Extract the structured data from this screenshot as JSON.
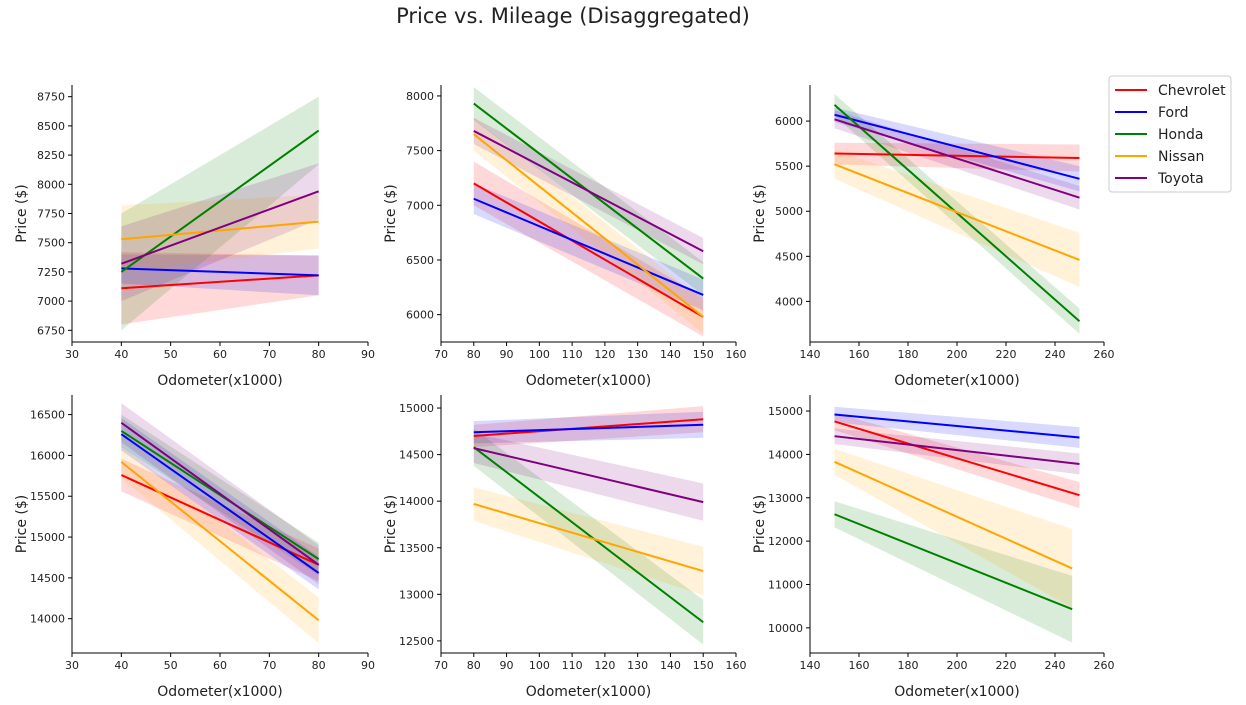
{
  "title": "Price vs. Mileage (Disaggregated)",
  "colors": {
    "Chevrolet": "#ff0000",
    "Ford": "#0000ff",
    "Honda": "#008000",
    "Nissan": "#ffa500",
    "Toyota": "#800080"
  },
  "legend": {
    "placement": "upper-right",
    "entries": [
      "Chevrolet",
      "Ford",
      "Honda",
      "Nissan",
      "Toyota"
    ]
  },
  "chart_data": [
    {
      "type": "line",
      "xlabel": "Odometer(x1000)",
      "ylabel": "Price ($)",
      "xlim": [
        30,
        90
      ],
      "ylim": [
        6650,
        8850
      ],
      "xticks": [
        30,
        40,
        50,
        60,
        70,
        80,
        90
      ],
      "yticks": [
        6750,
        7000,
        7250,
        7500,
        7750,
        8000,
        8250,
        8500,
        8750
      ],
      "series": [
        {
          "name": "Chevrolet",
          "x": [
            40,
            80
          ],
          "y": [
            7110,
            7220
          ],
          "band": [
            [
              6800,
              7420
            ],
            [
              7050,
              7390
            ]
          ]
        },
        {
          "name": "Ford",
          "x": [
            40,
            80
          ],
          "y": [
            7280,
            7220
          ],
          "band": [
            [
              7150,
              7400
            ],
            [
              7050,
              7390
            ]
          ]
        },
        {
          "name": "Honda",
          "x": [
            40,
            80
          ],
          "y": [
            7250,
            8460
          ],
          "band": [
            [
              6750,
              7750
            ],
            [
              8170,
              8750
            ]
          ]
        },
        {
          "name": "Nissan",
          "x": [
            40,
            80
          ],
          "y": [
            7530,
            7680
          ],
          "band": [
            [
              7250,
              7820
            ],
            [
              7450,
              7910
            ]
          ]
        },
        {
          "name": "Toyota",
          "x": [
            40,
            80
          ],
          "y": [
            7320,
            7940
          ],
          "band": [
            [
              7000,
              7640
            ],
            [
              7700,
              8180
            ]
          ]
        }
      ]
    },
    {
      "type": "line",
      "xlabel": "Odometer(x1000)",
      "ylabel": "Price ($)",
      "xlim": [
        70,
        160
      ],
      "ylim": [
        5750,
        8100
      ],
      "xticks": [
        70,
        80,
        90,
        100,
        110,
        120,
        130,
        140,
        150,
        160
      ],
      "yticks": [
        6000,
        6500,
        7000,
        7500,
        8000
      ],
      "series": [
        {
          "name": "Chevrolet",
          "x": [
            80,
            150
          ],
          "y": [
            7200,
            5980
          ],
          "band": [
            [
              7000,
              7400
            ],
            [
              5800,
              6160
            ]
          ]
        },
        {
          "name": "Ford",
          "x": [
            80,
            150
          ],
          "y": [
            7060,
            6180
          ],
          "band": [
            [
              6920,
              7200
            ],
            [
              6040,
              6320
            ]
          ]
        },
        {
          "name": "Honda",
          "x": [
            80,
            150
          ],
          "y": [
            7930,
            6330
          ],
          "band": [
            [
              7780,
              8080
            ],
            [
              6180,
              6480
            ]
          ]
        },
        {
          "name": "Nissan",
          "x": [
            80,
            150
          ],
          "y": [
            7650,
            5980
          ],
          "band": [
            [
              7500,
              7800
            ],
            [
              5830,
              6130
            ]
          ]
        },
        {
          "name": "Toyota",
          "x": [
            80,
            150
          ],
          "y": [
            7680,
            6580
          ],
          "band": [
            [
              7560,
              7800
            ],
            [
              6460,
              6700
            ]
          ]
        }
      ]
    },
    {
      "type": "line",
      "xlabel": "Odometer(x1000)",
      "ylabel": "Price ($)",
      "xlim": [
        140,
        260
      ],
      "ylim": [
        3550,
        6400
      ],
      "xticks": [
        140,
        160,
        180,
        200,
        220,
        240,
        260
      ],
      "yticks": [
        4000,
        4500,
        5000,
        5500,
        6000
      ],
      "series": [
        {
          "name": "Chevrolet",
          "x": [
            150,
            250
          ],
          "y": [
            5640,
            5590
          ],
          "band": [
            [
              5520,
              5760
            ],
            [
              5440,
              5740
            ]
          ]
        },
        {
          "name": "Ford",
          "x": [
            150,
            250
          ],
          "y": [
            6070,
            5360
          ],
          "band": [
            [
              5990,
              6150
            ],
            [
              5220,
              5500
            ]
          ]
        },
        {
          "name": "Honda",
          "x": [
            150,
            250
          ],
          "y": [
            6180,
            3780
          ],
          "band": [
            [
              6060,
              6300
            ],
            [
              3640,
              3920
            ]
          ]
        },
        {
          "name": "Nissan",
          "x": [
            150,
            250
          ],
          "y": [
            5520,
            4460
          ],
          "band": [
            [
              5360,
              5680
            ],
            [
              4160,
              4760
            ]
          ]
        },
        {
          "name": "Toyota",
          "x": [
            150,
            250
          ],
          "y": [
            6020,
            5150
          ],
          "band": [
            [
              5920,
              6120
            ],
            [
              5020,
              5280
            ]
          ]
        }
      ]
    },
    {
      "type": "line",
      "xlabel": "Odometer(x1000)",
      "ylabel": "Price ($)",
      "xlim": [
        30,
        90
      ],
      "ylim": [
        13580,
        16740
      ],
      "xticks": [
        30,
        40,
        50,
        60,
        70,
        80,
        90
      ],
      "yticks": [
        14000,
        14500,
        15000,
        15500,
        16000,
        16500
      ],
      "series": [
        {
          "name": "Chevrolet",
          "x": [
            40,
            80
          ],
          "y": [
            15760,
            14660
          ],
          "band": [
            [
              15560,
              15960
            ],
            [
              14460,
              14860
            ]
          ]
        },
        {
          "name": "Ford",
          "x": [
            40,
            80
          ],
          "y": [
            16260,
            14560
          ],
          "band": [
            [
              16060,
              16460
            ],
            [
              14360,
              14760
            ]
          ]
        },
        {
          "name": "Honda",
          "x": [
            40,
            80
          ],
          "y": [
            16300,
            14730
          ],
          "band": [
            [
              16100,
              16500
            ],
            [
              14530,
              14930
            ]
          ]
        },
        {
          "name": "Nissan",
          "x": [
            40,
            80
          ],
          "y": [
            15920,
            13980
          ],
          "band": [
            [
              15720,
              16120
            ],
            [
              13700,
              14260
            ]
          ]
        },
        {
          "name": "Toyota",
          "x": [
            40,
            80
          ],
          "y": [
            16400,
            14660
          ],
          "band": [
            [
              16160,
              16640
            ],
            [
              14420,
              14900
            ]
          ]
        }
      ]
    },
    {
      "type": "line",
      "xlabel": "Odometer(x1000)",
      "ylabel": "Price ($)",
      "xlim": [
        70,
        160
      ],
      "ylim": [
        12370,
        15140
      ],
      "xticks": [
        70,
        80,
        90,
        100,
        110,
        120,
        130,
        140,
        150,
        160
      ],
      "yticks": [
        12500,
        13000,
        13500,
        14000,
        14500,
        15000
      ],
      "series": [
        {
          "name": "Chevrolet",
          "x": [
            80,
            150
          ],
          "y": [
            14700,
            14880
          ],
          "band": [
            [
              14580,
              14820
            ],
            [
              14740,
              15020
            ]
          ]
        },
        {
          "name": "Ford",
          "x": [
            80,
            150
          ],
          "y": [
            14740,
            14820
          ],
          "band": [
            [
              14620,
              14860
            ],
            [
              14680,
              14960
            ]
          ]
        },
        {
          "name": "Honda",
          "x": [
            80,
            150
          ],
          "y": [
            14580,
            12700
          ],
          "band": [
            [
              14380,
              14780
            ],
            [
              12460,
              12940
            ]
          ]
        },
        {
          "name": "Nissan",
          "x": [
            80,
            150
          ],
          "y": [
            13970,
            13250
          ],
          "band": [
            [
              13790,
              14150
            ],
            [
              12990,
              13510
            ]
          ]
        },
        {
          "name": "Toyota",
          "x": [
            80,
            150
          ],
          "y": [
            14570,
            13990
          ],
          "band": [
            [
              14410,
              14730
            ],
            [
              13790,
              14190
            ]
          ]
        }
      ]
    },
    {
      "type": "line",
      "xlabel": "Odometer(x1000)",
      "ylabel": "Price ($)",
      "xlim": [
        140,
        260
      ],
      "ylim": [
        9420,
        15370
      ],
      "xticks": [
        140,
        160,
        180,
        200,
        220,
        240,
        260
      ],
      "yticks": [
        10000,
        11000,
        12000,
        13000,
        14000,
        15000
      ],
      "series": [
        {
          "name": "Chevrolet",
          "x": [
            150,
            250
          ],
          "y": [
            14760,
            13060
          ],
          "band": [
            [
              14560,
              14960
            ],
            [
              12760,
              13360
            ]
          ]
        },
        {
          "name": "Ford",
          "x": [
            150,
            250
          ],
          "y": [
            14920,
            14390
          ],
          "band": [
            [
              14740,
              15100
            ],
            [
              14150,
              14630
            ]
          ]
        },
        {
          "name": "Honda",
          "x": [
            150,
            247
          ],
          "y": [
            12620,
            10430
          ],
          "band": [
            [
              12320,
              12920
            ],
            [
              9660,
              11200
            ]
          ]
        },
        {
          "name": "Nissan",
          "x": [
            150,
            247
          ],
          "y": [
            13830,
            11370
          ],
          "band": [
            [
              13530,
              14130
            ],
            [
              10460,
              12280
            ]
          ]
        },
        {
          "name": "Toyota",
          "x": [
            150,
            250
          ],
          "y": [
            14420,
            13780
          ],
          "band": [
            [
              14240,
              14600
            ],
            [
              13540,
              14020
            ]
          ]
        }
      ]
    }
  ]
}
